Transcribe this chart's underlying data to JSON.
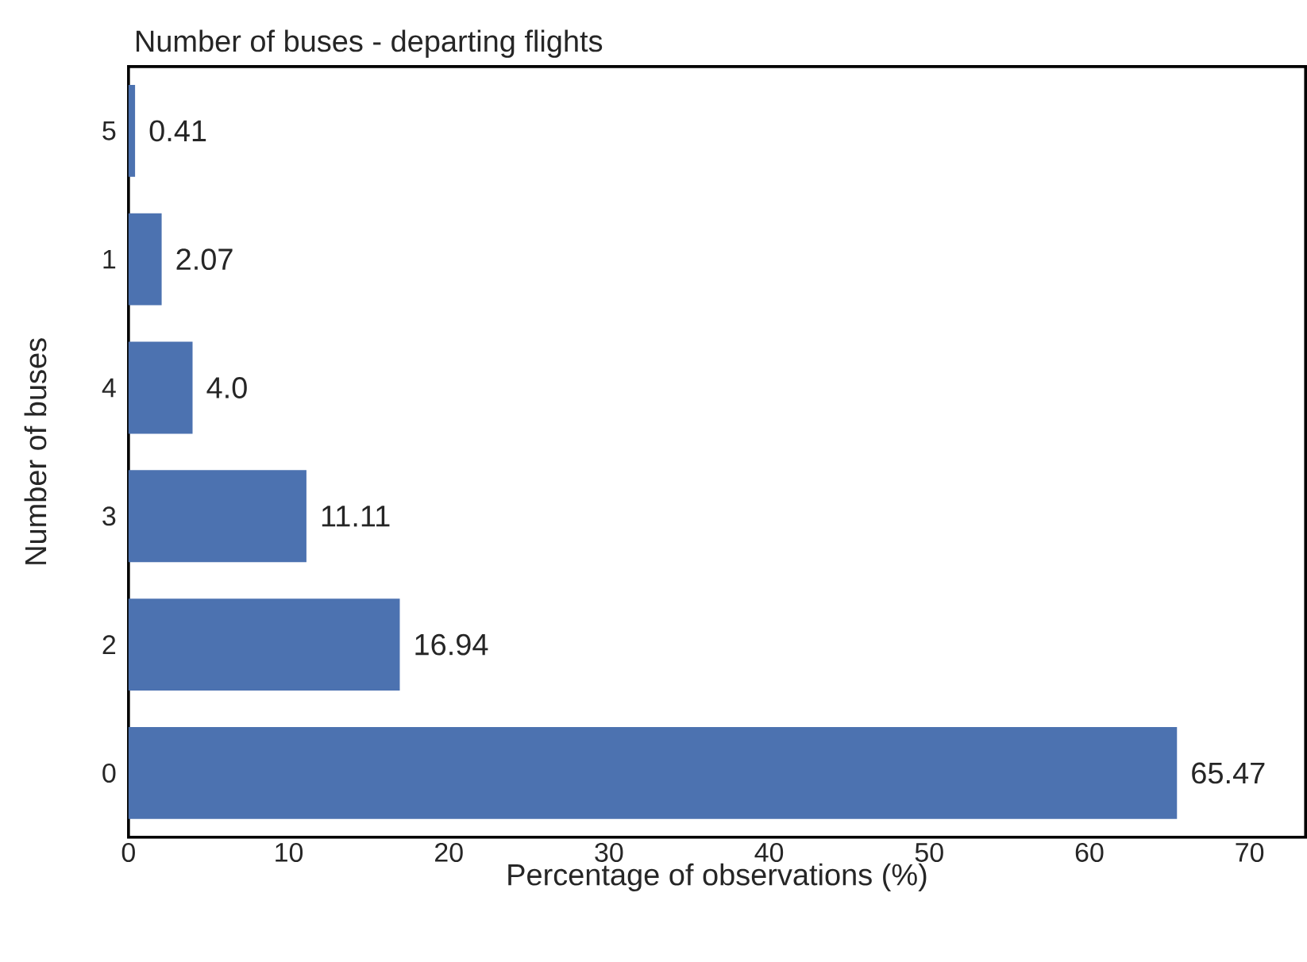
{
  "chart_data": {
    "type": "bar",
    "orientation": "horizontal",
    "title": "Number of buses - departing flights",
    "xlabel": "Percentage of observations (%)",
    "ylabel": "Number of buses",
    "categories": [
      "5",
      "1",
      "4",
      "3",
      "2",
      "0"
    ],
    "values": [
      0.41,
      2.07,
      4.0,
      11.11,
      16.94,
      65.47
    ],
    "value_labels": [
      "0.41",
      "2.07",
      "4.0",
      "11.11",
      "16.94",
      "65.47"
    ],
    "color": "#4c72b0",
    "xlim": [
      0,
      73.5
    ],
    "xticks": [
      0,
      10,
      20,
      30,
      40,
      50,
      60,
      70
    ]
  }
}
